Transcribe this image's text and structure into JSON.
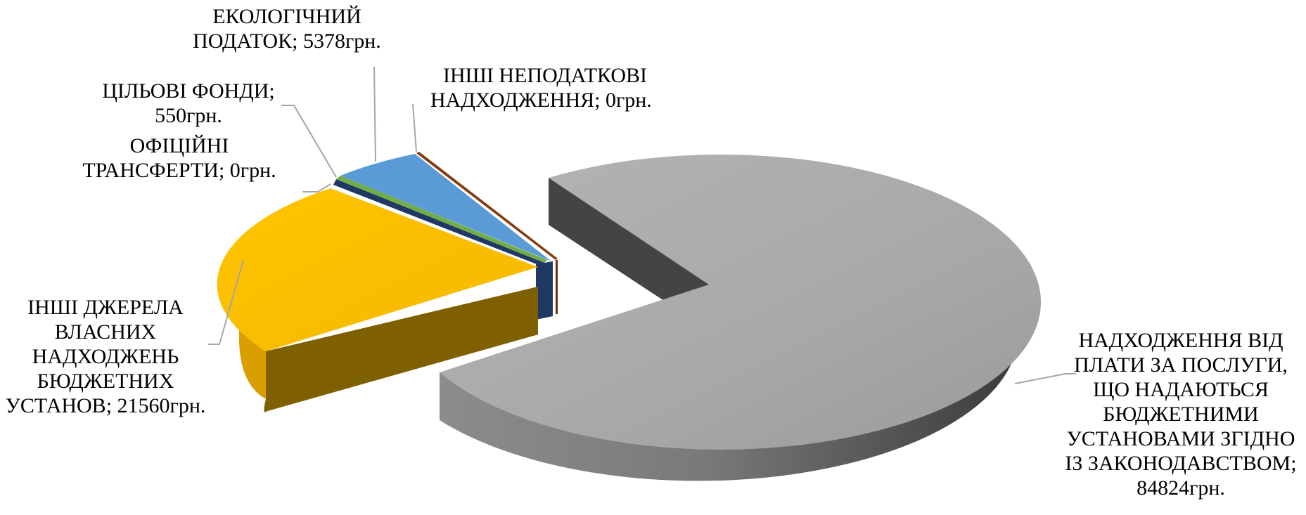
{
  "colors": {
    "background": "#ffffff",
    "leader_line": "#a6a6a6",
    "label_text": "#000000"
  },
  "chart_data": {
    "type": "pie",
    "title": "",
    "three_d": true,
    "exploded": true,
    "unit": "грн.",
    "legend": "none",
    "slices": [
      {
        "label": "НАДХОДЖЕННЯ ВІД ПЛАТИ ЗА ПОСЛУГИ, ЩО НАДАЮТЬСЯ БЮДЖЕТНИМИ УСТАНОВАМИ ЗГІДНО ІЗ ЗАКОНОДАВСТВОМ",
        "value": 84824,
        "color": "#a6a6a6",
        "data_label": [
          "НАДХОДЖЕННЯ ВІД",
          "ПЛАТИ ЗА ПОСЛУГИ,",
          "ЩО НАДАЮТЬСЯ",
          "БЮДЖЕТНИМИ",
          "УСТАНОВАМИ ЗГІДНО",
          "ІЗ ЗАКОНОДАВСТВОМ;",
          "84824грн."
        ]
      },
      {
        "label": "ІНШІ ДЖЕРЕЛА ВЛАСНИХ НАДХОДЖЕНЬ БЮДЖЕТНИХ УСТАНОВ",
        "value": 21560,
        "color": "#ffc000",
        "data_label": [
          "ІНШІ ДЖЕРЕЛА",
          "ВЛАСНИХ",
          "НАДХОДЖЕНЬ",
          "БЮДЖЕТНИХ",
          "УСТАНОВ; 21560грн."
        ]
      },
      {
        "label": "ОФІЦІЙНІ ТРАНСФЕРТИ",
        "value": 0,
        "color": "#203864",
        "data_label": [
          "ОФІЦІЙНІ",
          "ТРАНСФЕРТИ; 0грн."
        ]
      },
      {
        "label": "ЦІЛЬОВІ ФОНДИ",
        "value": 550,
        "color": "#70ad47",
        "data_label": [
          "ЦІЛЬОВІ ФОНДИ;",
          "550грн."
        ]
      },
      {
        "label": "ЕКОЛОГІЧНИЙ ПОДАТОК",
        "value": 5378,
        "color": "#5b9bd5",
        "data_label": [
          "ЕКОЛОГІЧНИЙ",
          "ПОДАТОК; 5378грн."
        ]
      },
      {
        "label": "ІНШІ НЕПОДАТКОВІ НАДХОДЖЕННЯ",
        "value": 0,
        "color": "#843c0c",
        "data_label": [
          "ІНШІ НЕПОДАТКОВІ",
          "НАДХОДЖЕННЯ; 0грн."
        ]
      }
    ]
  }
}
